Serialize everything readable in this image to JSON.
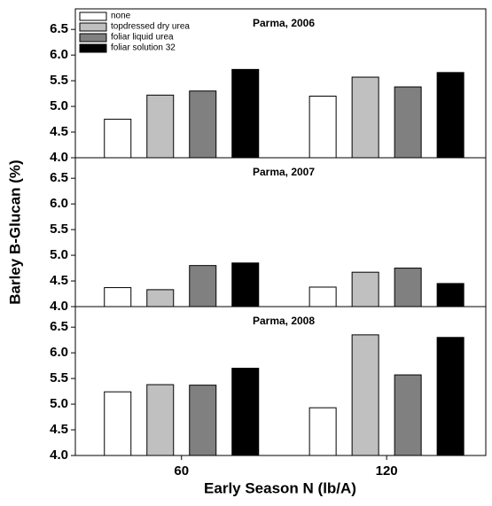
{
  "ylabel": "Barley B-Glucan (%)",
  "xlabel": "Early Season N (lb/A)",
  "chart_data": [
    {
      "type": "bar",
      "title": "Parma, 2006",
      "legend": "upper left",
      "series": [
        {
          "name": "none",
          "color": "#ffffff",
          "values": [
            4.75,
            5.2
          ]
        },
        {
          "name": "topdressed dry urea",
          "color": "#c0c0c0",
          "values": [
            5.22,
            5.57
          ]
        },
        {
          "name": "foliar liquid urea",
          "color": "#808080",
          "values": [
            5.3,
            5.38
          ]
        },
        {
          "name": "foliar solution 32",
          "color": "#000000",
          "values": [
            5.72,
            5.66
          ]
        }
      ],
      "ylim": [
        4,
        6.9
      ],
      "yticks": [
        {
          "value": 4,
          "label": "4.0"
        },
        4.5,
        {
          "value": 5,
          "label": "5.0"
        },
        5.5,
        {
          "value": 6,
          "label": "6.0"
        },
        6.5
      ]
    },
    {
      "type": "bar",
      "title": "Parma, 2007",
      "series": [
        {
          "color": "#ffffff",
          "values": [
            4.37,
            4.38
          ]
        },
        {
          "color": "#c0c0c0",
          "values": [
            4.33,
            4.67
          ]
        },
        {
          "color": "#808080",
          "values": [
            4.8,
            4.75
          ]
        },
        {
          "color": "#000000",
          "values": [
            4.85,
            4.45
          ]
        }
      ],
      "ylim": [
        4,
        6.9
      ],
      "yticks": [
        {
          "value": 4,
          "label": "4.0"
        },
        4.5,
        {
          "value": 5,
          "label": "5.0"
        },
        5.5,
        {
          "value": 6,
          "label": "6.0"
        },
        6.5
      ]
    },
    {
      "type": "bar",
      "title": "Parma, 2008",
      "categories": [
        "60",
        "120"
      ],
      "series": [
        {
          "color": "#ffffff",
          "values": [
            5.24,
            4.93
          ]
        },
        {
          "color": "#c0c0c0",
          "values": [
            5.38,
            6.35
          ]
        },
        {
          "color": "#808080",
          "values": [
            5.37,
            5.57
          ]
        },
        {
          "color": "#000000",
          "values": [
            5.7,
            6.3
          ]
        }
      ],
      "ylim": [
        4,
        6.9
      ],
      "yticks": [
        {
          "value": 4,
          "label": "4.0"
        },
        4.5,
        {
          "value": 5,
          "label": "5.0"
        },
        5.5,
        {
          "value": 6,
          "label": "6.0"
        },
        6.5
      ]
    }
  ]
}
